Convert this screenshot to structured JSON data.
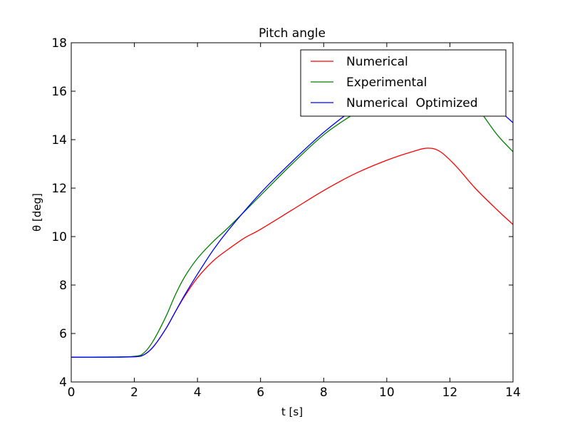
{
  "chart_data": {
    "type": "line",
    "title": "Pitch angle",
    "xlabel": "t [s]",
    "ylabel": "θ [deg]",
    "xlim": [
      0,
      14
    ],
    "ylim": [
      4,
      18
    ],
    "xticks": [
      0,
      2,
      4,
      6,
      8,
      10,
      12,
      14
    ],
    "yticks": [
      4,
      6,
      8,
      10,
      12,
      14,
      16,
      18
    ],
    "grid": false,
    "legend_position": "top-right",
    "series": [
      {
        "name": "Numerical",
        "color": "#ff0000",
        "x": [
          0,
          1,
          2,
          2.3,
          2.6,
          3.0,
          3.3,
          3.6,
          4.0,
          4.5,
          5.0,
          5.5,
          6.0,
          7.0,
          8.0,
          9.0,
          10.0,
          10.8,
          11.3,
          11.7,
          12.2,
          12.8,
          13.5,
          14.0
        ],
        "y": [
          5.02,
          5.02,
          5.04,
          5.12,
          5.45,
          6.2,
          6.9,
          7.55,
          8.3,
          9.0,
          9.5,
          9.95,
          10.3,
          11.1,
          11.9,
          12.6,
          13.15,
          13.5,
          13.65,
          13.5,
          12.9,
          12.0,
          11.1,
          10.5
        ]
      },
      {
        "name": "Experimental",
        "color": "#008000",
        "x": [
          0,
          1,
          2,
          2.3,
          2.6,
          3.0,
          3.3,
          3.6,
          4.0,
          4.5,
          5.0,
          6.0,
          7.0,
          8.0,
          9.0,
          10.0,
          11.0,
          12.0,
          12.5,
          13.0,
          13.5,
          14.0
        ],
        "y": [
          5.02,
          5.03,
          5.06,
          5.2,
          5.7,
          6.7,
          7.6,
          8.35,
          9.1,
          9.8,
          10.4,
          11.7,
          13.0,
          14.2,
          15.1,
          15.9,
          16.5,
          16.5,
          16.0,
          15.1,
          14.2,
          13.5
        ]
      },
      {
        "name": "Numerical  Optimized",
        "color": "#0000ff",
        "x": [
          0,
          1,
          2,
          2.3,
          2.6,
          3.0,
          3.3,
          3.6,
          4.0,
          4.5,
          5.0,
          6.0,
          7.0,
          8.0,
          9.0,
          10.0,
          11.0,
          12.0,
          12.5,
          13.0,
          13.5,
          14.0
        ],
        "y": [
          5.02,
          5.02,
          5.04,
          5.12,
          5.45,
          6.2,
          6.9,
          7.6,
          8.45,
          9.45,
          10.3,
          11.8,
          13.1,
          14.3,
          15.3,
          16.1,
          16.6,
          16.7,
          16.5,
          16.0,
          15.3,
          14.7
        ]
      }
    ]
  }
}
